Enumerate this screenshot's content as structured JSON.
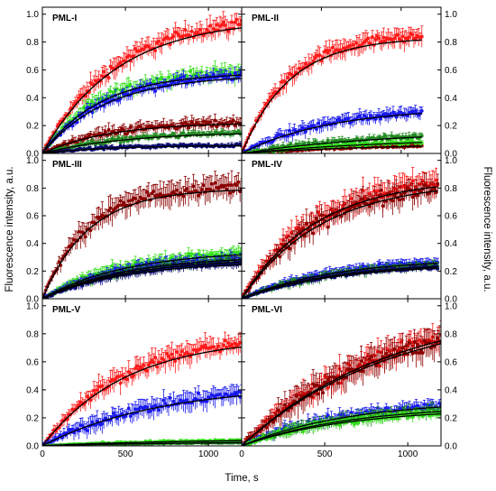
{
  "figure": {
    "xlabel": "Time, s",
    "ylabel_left": "Fluorescence intensity, a.u.",
    "ylabel_right": "Fluorescence intensity, a.u."
  },
  "colors": {
    "red": "#ff1a1a",
    "dark_red": "#8b0000",
    "light_green": "#33e01a",
    "dark_green": "#228b22",
    "blue": "#1a1aee",
    "navy": "#0a0a6e",
    "fit": "#000000"
  },
  "chart_data": [
    {
      "type": "scatter",
      "title": "PML-I",
      "xlim": [
        0,
        1200
      ],
      "ylim": [
        0,
        1.05
      ],
      "xticks": [
        0,
        500,
        1000
      ],
      "yticks": [
        0.0,
        0.2,
        0.4,
        0.6,
        0.8,
        1.0
      ],
      "xend": 1200,
      "series": [
        {
          "color": "red",
          "plateau": 1.0,
          "tau": 450,
          "noise": 0.05,
          "err": 0.06
        },
        {
          "color": "light_green",
          "plateau": 0.6,
          "tau": 350,
          "noise": 0.04,
          "err": 0.05
        },
        {
          "color": "blue",
          "plateau": 0.58,
          "tau": 380,
          "noise": 0.035,
          "err": 0.04
        },
        {
          "color": "dark_red",
          "plateau": 0.23,
          "tau": 400,
          "noise": 0.03,
          "err": 0.04
        },
        {
          "color": "dark_green",
          "plateau": 0.16,
          "tau": 500,
          "noise": 0.02,
          "err": 0.02
        },
        {
          "color": "navy",
          "plateau": 0.06,
          "tau": 400,
          "noise": 0.012,
          "err": 0.015
        }
      ]
    },
    {
      "type": "scatter",
      "title": "PML-II",
      "xlim": [
        0,
        1250
      ],
      "ylim": [
        0,
        1.05
      ],
      "xticks": [
        0,
        500,
        1000
      ],
      "yticks": [
        0.0,
        0.2,
        0.4,
        0.6,
        0.8,
        1.0
      ],
      "xend": 1130,
      "series": [
        {
          "color": "red",
          "plateau": 0.86,
          "tau": 300,
          "noise": 0.04,
          "err": 0.06
        },
        {
          "color": "blue",
          "plateau": 0.34,
          "tau": 550,
          "noise": 0.03,
          "err": 0.04
        },
        {
          "color": "dark_green",
          "plateau": 0.17,
          "tau": 900,
          "noise": 0.02,
          "err": 0.025
        },
        {
          "color": "dark_red",
          "plateau": 0.07,
          "tau": 800,
          "noise": 0.01,
          "err": 0.015
        },
        {
          "color": "light_green",
          "plateau": 0.12,
          "tau": 1000,
          "noise": 0.015,
          "err": 0.015
        }
      ]
    },
    {
      "type": "scatter",
      "title": "PML-III",
      "xlim": [
        0,
        1200
      ],
      "ylim": [
        0,
        1.05
      ],
      "xticks": [
        0,
        500,
        1000
      ],
      "yticks": [
        0.0,
        0.2,
        0.4,
        0.6,
        0.8,
        1.0
      ],
      "xend": 1200,
      "series": [
        {
          "color": "dark_red",
          "plateau": 0.82,
          "tau": 280,
          "noise": 0.05,
          "err": 0.08
        },
        {
          "color": "light_green",
          "plateau": 0.36,
          "tau": 500,
          "noise": 0.03,
          "err": 0.04
        },
        {
          "color": "blue",
          "plateau": 0.32,
          "tau": 500,
          "noise": 0.03,
          "err": 0.04
        },
        {
          "color": "dark_green",
          "plateau": 0.3,
          "tau": 500,
          "noise": 0.025,
          "err": 0.03
        },
        {
          "color": "navy",
          "plateau": 0.28,
          "tau": 500,
          "noise": 0.02,
          "err": 0.03
        }
      ]
    },
    {
      "type": "scatter",
      "title": "PML-IV",
      "xlim": [
        0,
        1200
      ],
      "ylim": [
        0,
        1.05
      ],
      "xticks": [
        0,
        500,
        1000
      ],
      "yticks": [
        0.0,
        0.2,
        0.4,
        0.6,
        0.8,
        1.0
      ],
      "xend": 1180,
      "series": [
        {
          "color": "red",
          "plateau": 0.9,
          "tau": 450,
          "noise": 0.06,
          "err": 0.08
        },
        {
          "color": "dark_red",
          "plateau": 0.88,
          "tau": 480,
          "noise": 0.06,
          "err": 0.08
        },
        {
          "color": "blue",
          "plateau": 0.3,
          "tau": 550,
          "noise": 0.02,
          "err": 0.03
        },
        {
          "color": "dark_green",
          "plateau": 0.27,
          "tau": 550,
          "noise": 0.02,
          "err": 0.03
        },
        {
          "color": "navy",
          "plateau": 0.26,
          "tau": 560,
          "noise": 0.015,
          "err": 0.02
        }
      ]
    },
    {
      "type": "scatter",
      "title": "PML-V",
      "xlim": [
        0,
        1200
      ],
      "ylim": [
        0,
        1.05
      ],
      "xticks": [
        0,
        500,
        1000
      ],
      "yticks": [
        0.0,
        0.2,
        0.4,
        0.6,
        0.8,
        1.0
      ],
      "xend": 1200,
      "series": [
        {
          "color": "red",
          "plateau": 0.8,
          "tau": 500,
          "noise": 0.05,
          "err": 0.07
        },
        {
          "color": "blue",
          "plateau": 0.45,
          "tau": 700,
          "noise": 0.04,
          "err": 0.06
        },
        {
          "color": "light_green",
          "plateau": 0.05,
          "tau": 800,
          "noise": 0.008,
          "err": 0.01
        },
        {
          "color": "dark_green",
          "plateau": 0.03,
          "tau": 800,
          "noise": 0.005,
          "err": 0.008
        }
      ]
    },
    {
      "type": "scatter",
      "title": "PML-VI",
      "xlim": [
        0,
        1200
      ],
      "ylim": [
        0,
        1.05
      ],
      "xticks": [
        0,
        500,
        1000
      ],
      "yticks": [
        0.0,
        0.2,
        0.4,
        0.6,
        0.8,
        1.0
      ],
      "xend": 1200,
      "series": [
        {
          "color": "red",
          "plateau": 1.05,
          "tau": 900,
          "noise": 0.06,
          "err": 0.08
        },
        {
          "color": "dark_red",
          "plateau": 1.02,
          "tau": 900,
          "noise": 0.06,
          "err": 0.09
        },
        {
          "color": "blue",
          "plateau": 0.34,
          "tau": 650,
          "noise": 0.03,
          "err": 0.04
        },
        {
          "color": "dark_green",
          "plateau": 0.3,
          "tau": 650,
          "noise": 0.03,
          "err": 0.04
        },
        {
          "color": "light_green",
          "plateau": 0.28,
          "tau": 650,
          "noise": 0.025,
          "err": 0.03
        }
      ]
    }
  ]
}
